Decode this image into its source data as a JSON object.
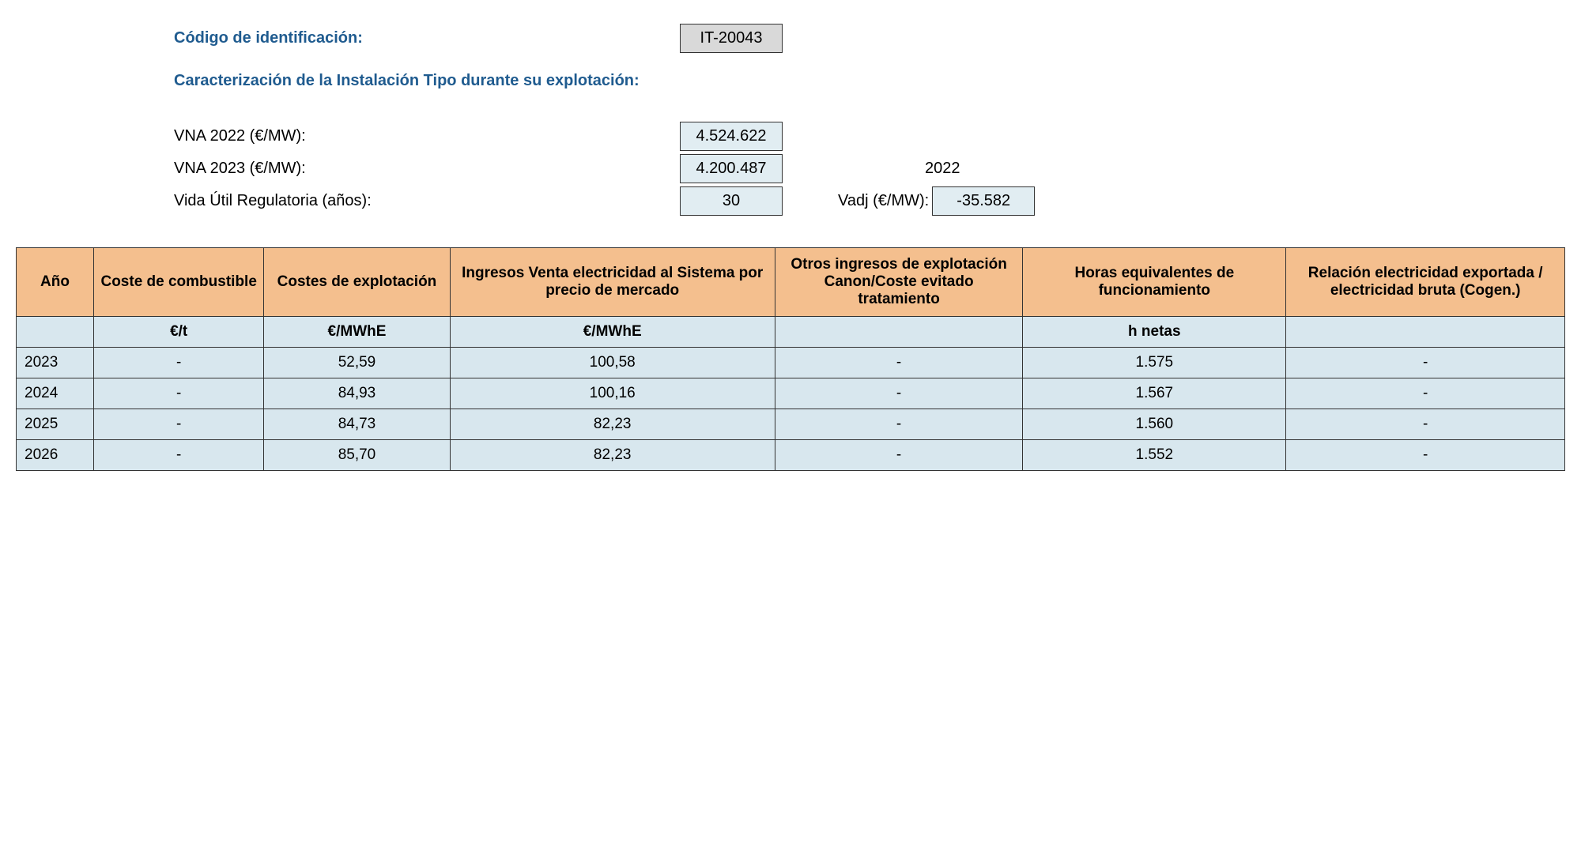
{
  "header": {
    "code_label": "Código de identificación:",
    "code_value": "IT-20043",
    "subtitle": "Caracterización de la Instalación Tipo durante su explotación:",
    "vna2022_label": "VNA 2022 (€/MW):",
    "vna2022_value": "4.524.622",
    "vna2023_label": "VNA 2023 (€/MW):",
    "vna2023_value": "4.200.487",
    "extra_year": "2022",
    "life_label": "Vida Útil Regulatoria (años):",
    "life_value": "30",
    "vadj_label": "Vadj (€/MW):",
    "vadj_value": "-35.582"
  },
  "table": {
    "columns": [
      "Año",
      "Coste de combustible",
      "Costes de explotación",
      "Ingresos Venta electricidad al Sistema por precio de mercado",
      "Otros ingresos de explotación Canon/Coste evitado tratamiento",
      "Horas equivalentes de funcionamiento",
      "Relación electricidad exportada / electricidad bruta\n(Cogen.)"
    ],
    "units": [
      "",
      "€/t",
      "€/MWhE",
      "€/MWhE",
      "",
      "h netas",
      ""
    ],
    "rows": [
      [
        "2023",
        "-",
        "52,59",
        "100,58",
        "-",
        "1.575",
        "-"
      ],
      [
        "2024",
        "-",
        "84,93",
        "100,16",
        "-",
        "1.567",
        "-"
      ],
      [
        "2025",
        "-",
        "84,73",
        "82,23",
        "-",
        "1.560",
        "-"
      ],
      [
        "2026",
        "-",
        "85,70",
        "82,23",
        "-",
        "1.552",
        "-"
      ]
    ]
  },
  "colors": {
    "header_blue": "#1f5b8f",
    "table_header_bg": "#f4bf8e",
    "table_cell_bg": "#d8e7ee",
    "code_box_bg": "#d9d9d9",
    "value_box_bg": "#e1edf2",
    "border": "#333333"
  }
}
